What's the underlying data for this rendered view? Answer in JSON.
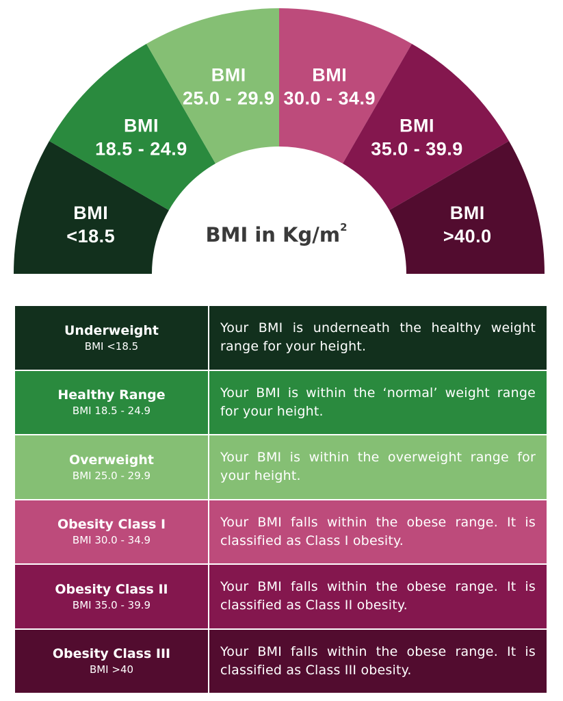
{
  "gauge": {
    "center_label": "BMI in Kg/m",
    "center_superscript": "2",
    "segments": [
      {
        "line1": "BMI",
        "line2": "<18.5",
        "color": "#12301d"
      },
      {
        "line1": "BMI",
        "line2": "18.5 - 24.9",
        "color": "#2a8a3e"
      },
      {
        "line1": "BMI",
        "line2": "25.0 - 29.9",
        "color": "#85bf74"
      },
      {
        "line1": "BMI",
        "line2": "30.0 - 34.9",
        "color": "#bd4b7b"
      },
      {
        "line1": "BMI",
        "line2": "35.0 - 39.9",
        "color": "#84174e"
      },
      {
        "line1": "BMI",
        "line2": ">40.0",
        "color": "#520c2f"
      }
    ]
  },
  "table": {
    "rows": [
      {
        "category": "Underweight",
        "range": "BMI <18.5",
        "description": "Your BMI is underneath the healthy weight range for your height.",
        "color": "#12301d"
      },
      {
        "category": "Healthy Range",
        "range": "BMI 18.5 - 24.9",
        "description": "Your BMI is within the ‘normal’ weight range for your height.",
        "color": "#2a8a3e"
      },
      {
        "category": "Overweight",
        "range": "BMI 25.0 - 29.9",
        "description": "Your BMI is within the overweight range for your height.",
        "color": "#85bf74"
      },
      {
        "category": "Obesity Class I",
        "range": "BMI 30.0 - 34.9",
        "description": "Your BMI falls within the obese range. It is classified as Class I obesity.",
        "color": "#bd4b7b"
      },
      {
        "category": "Obesity Class II",
        "range": "BMI 35.0 - 39.9",
        "description": "Your BMI falls within the obese range. It is classified as Class II obesity.",
        "color": "#84174e"
      },
      {
        "category": "Obesity Class III",
        "range": "BMI >40",
        "description": "Your BMI falls within the obese range. It is classified as Class III obesity.",
        "color": "#520c2f"
      }
    ]
  }
}
